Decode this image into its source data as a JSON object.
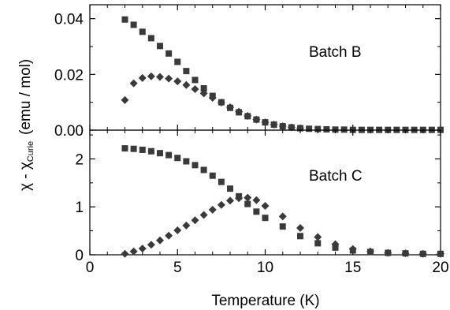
{
  "chart_data": [
    {
      "type": "scatter",
      "panel": "top",
      "annotation": "Batch B",
      "xlim": [
        0,
        20
      ],
      "ylim": [
        0,
        0.045
      ],
      "x_ticks": [
        0,
        5,
        10,
        15,
        20
      ],
      "y_ticks": [
        0.0,
        0.02,
        0.04
      ],
      "y_tick_labels": [
        "0.00",
        "0.02",
        "0.04"
      ],
      "grid": false,
      "series": [
        {
          "marker": "square",
          "color": "#3a3a3a",
          "x": [
            2.0,
            2.5,
            3.0,
            3.5,
            4.0,
            4.5,
            5.0,
            5.5,
            6.0,
            6.5,
            7.0,
            7.5,
            8.0,
            8.5,
            9.0,
            9.5,
            10.0,
            10.5,
            11.0,
            11.5,
            12.0,
            12.5,
            13.0,
            13.5,
            14.0,
            14.5,
            15.0,
            15.5,
            16.0,
            16.5,
            17.0,
            17.5,
            18.0,
            18.5,
            19.0,
            19.5,
            20.0
          ],
          "y": [
            0.0397,
            0.0378,
            0.0353,
            0.033,
            0.0302,
            0.0275,
            0.0245,
            0.0212,
            0.018,
            0.015,
            0.0123,
            0.01,
            0.008,
            0.0064,
            0.005,
            0.0038,
            0.0028,
            0.002,
            0.0014,
            0.001,
            0.0007,
            0.0005,
            0.0004,
            0.0003,
            0.0002,
            0.0002,
            0.0001,
            0.0001,
            0.0001,
            0.0001,
            0.0001,
            0.0001,
            0.0001,
            0.0001,
            0.0001,
            0.0001,
            0.0001
          ]
        },
        {
          "marker": "diamond",
          "color": "#3a3a3a",
          "x": [
            2.0,
            2.5,
            3.0,
            3.5,
            4.0,
            4.5,
            5.0,
            5.5,
            6.0,
            6.5,
            7.0,
            7.5,
            8.0,
            8.5,
            9.0,
            9.5,
            10.0,
            10.5,
            11.0,
            11.5,
            12.0
          ],
          "y": [
            0.0108,
            0.0168,
            0.0187,
            0.0193,
            0.0191,
            0.0185,
            0.0175,
            0.0162,
            0.0147,
            0.0132,
            0.0116,
            0.0099,
            0.0082,
            0.0066,
            0.0051,
            0.0038,
            0.0028,
            0.002,
            0.0014,
            0.001,
            0.0007
          ]
        }
      ]
    },
    {
      "type": "scatter",
      "panel": "bottom",
      "annotation": "Batch C",
      "xlabel": "Temperature (K)",
      "xlim": [
        0,
        20
      ],
      "ylim": [
        0,
        2.6
      ],
      "x_ticks": [
        0,
        5,
        10,
        15,
        20
      ],
      "x_tick_labels": [
        "0",
        "5",
        "10",
        "15",
        "20"
      ],
      "y_ticks": [
        0,
        1,
        2
      ],
      "y_tick_labels": [
        "0",
        "1",
        "2"
      ],
      "grid": false,
      "series": [
        {
          "marker": "square",
          "color": "#3a3a3a",
          "x": [
            2.0,
            2.5,
            3.0,
            3.5,
            4.0,
            4.5,
            5.0,
            5.5,
            6.0,
            6.5,
            7.0,
            7.5,
            8.0,
            8.5,
            9.0,
            9.5,
            10.0,
            11.0,
            12.0,
            13.0,
            14.0,
            15.0,
            16.0,
            17.0,
            18.0,
            19.0,
            20.0
          ],
          "y": [
            2.22,
            2.21,
            2.19,
            2.16,
            2.12,
            2.08,
            2.02,
            1.95,
            1.87,
            1.77,
            1.65,
            1.52,
            1.38,
            1.22,
            1.06,
            0.9,
            0.77,
            0.59,
            0.39,
            0.24,
            0.15,
            0.09,
            0.06,
            0.04,
            0.03,
            0.02,
            0.02
          ]
        },
        {
          "marker": "diamond",
          "color": "#3a3a3a",
          "x": [
            2.0,
            2.5,
            3.0,
            3.5,
            4.0,
            4.5,
            5.0,
            5.5,
            6.0,
            6.5,
            7.0,
            7.5,
            8.0,
            8.5,
            9.0,
            9.5,
            10.0,
            11.0,
            12.0,
            13.0,
            14.0,
            15.0,
            16.0,
            17.0,
            18.0,
            19.0,
            20.0
          ],
          "y": [
            0.02,
            0.07,
            0.13,
            0.21,
            0.3,
            0.4,
            0.51,
            0.61,
            0.72,
            0.83,
            0.94,
            1.04,
            1.13,
            1.18,
            1.19,
            1.14,
            1.02,
            0.8,
            0.56,
            0.37,
            0.22,
            0.12,
            0.07,
            0.04,
            0.03,
            0.02,
            0.02
          ]
        }
      ]
    }
  ],
  "ylabel": {
    "chi": "χ",
    "minus": " - ",
    "chi2": "χ",
    "sub": "Curie",
    "units": "(emu / mol)"
  }
}
